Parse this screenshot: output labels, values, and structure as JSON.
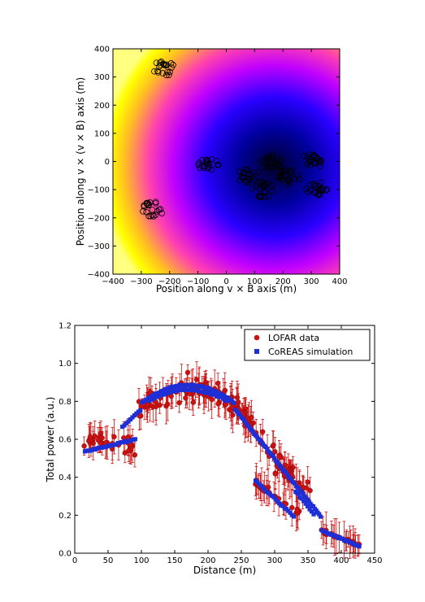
{
  "chart_data": [
    {
      "type": "heatmap",
      "xlabel": "Position along v × B axis (m)",
      "ylabel": "Position along v × (v × B) axis (m)",
      "xlim": [
        -400,
        400
      ],
      "ylim": [
        -400,
        400
      ],
      "xticks": [
        -400,
        -300,
        -200,
        -100,
        0,
        100,
        200,
        300,
        400
      ],
      "yticks": [
        -400,
        -300,
        -200,
        -100,
        0,
        100,
        200,
        300,
        400
      ],
      "colormap": "gnuplot2",
      "colors": [
        "#000000",
        "#0000ff",
        "#ff00ff",
        "#ffff00",
        "#ffffcc"
      ],
      "intensity_peak": [
        170,
        -20
      ],
      "antenna_stations": [
        {
          "x": -220,
          "y": 330
        },
        {
          "x": -60,
          "y": -10
        },
        {
          "x": -260,
          "y": -170
        },
        {
          "x": 160,
          "y": 0
        },
        {
          "x": 80,
          "y": -50
        },
        {
          "x": 130,
          "y": -100
        },
        {
          "x": 220,
          "y": -55
        },
        {
          "x": 300,
          "y": 0
        },
        {
          "x": 320,
          "y": -95
        }
      ]
    },
    {
      "type": "scatter",
      "xlabel": "Distance (m)",
      "ylabel": "Total power (a.u.)",
      "xlim": [
        0,
        450
      ],
      "ylim": [
        0,
        1.2
      ],
      "xticks": [
        0,
        50,
        100,
        150,
        200,
        250,
        300,
        350,
        400,
        450
      ],
      "yticks": [
        "0.0",
        "0.2",
        "0.4",
        "0.6",
        "0.8",
        "1.0",
        "1.2"
      ],
      "legend_position": "top-right",
      "series": [
        {
          "name": "LOFAR data",
          "color": "#cc1111",
          "marker": "circle",
          "segments": [
            {
              "from": 12,
              "to": 95,
              "y0": 0.6,
              "y1": 0.56,
              "spread": 0.07,
              "n": 36
            },
            {
              "from": 95,
              "to": 250,
              "peak_x": 175,
              "peak_y": 0.87,
              "base": 0.75,
              "spread": 0.09,
              "n": 95
            },
            {
              "from": 250,
              "to": 330,
              "y0": 0.74,
              "y1": 0.4,
              "spread": 0.08,
              "n": 40
            },
            {
              "from": 270,
              "to": 345,
              "y0": 0.37,
              "y1": 0.2,
              "spread": 0.03,
              "n": 26
            },
            {
              "from": 300,
              "to": 360,
              "y0": 0.45,
              "y1": 0.3,
              "spread": 0.06,
              "n": 22
            },
            {
              "from": 370,
              "to": 428,
              "y0": 0.12,
              "y1": 0.04,
              "spread": 0.015,
              "n": 26
            }
          ]
        },
        {
          "name": "CoREAS simulation",
          "color": "#1e2fd6",
          "marker": "square",
          "segments": [
            {
              "from": 14,
              "to": 92,
              "y0": 0.535,
              "y1": 0.6,
              "n": 30
            },
            {
              "from": 70,
              "to": 100,
              "y0": 0.66,
              "y1": 0.76,
              "n": 10
            },
            {
              "from": 100,
              "to": 240,
              "arc": true,
              "peak_x": 170,
              "peak_y": 0.885,
              "base": 0.79,
              "n": 60
            },
            {
              "from": 110,
              "to": 230,
              "arc": true,
              "peak_x": 170,
              "peak_y": 0.86,
              "base": 0.8,
              "n": 40
            },
            {
              "from": 240,
              "to": 370,
              "y0": 0.76,
              "y1": 0.19,
              "n": 60
            },
            {
              "from": 270,
              "to": 330,
              "y0": 0.385,
              "y1": 0.19,
              "n": 22
            },
            {
              "from": 330,
              "to": 360,
              "y0": 0.33,
              "y1": 0.2,
              "n": 10
            },
            {
              "from": 370,
              "to": 428,
              "y0": 0.12,
              "y1": 0.035,
              "n": 26
            }
          ]
        }
      ]
    }
  ]
}
